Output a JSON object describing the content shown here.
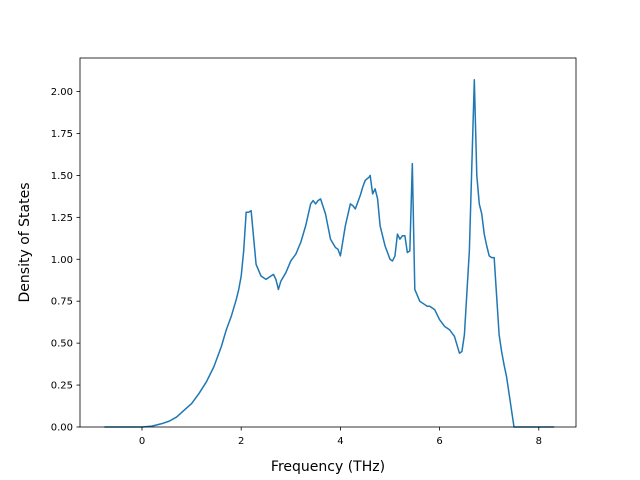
{
  "chart_data": {
    "type": "line",
    "title": "",
    "xlabel": "Frequency (THz)",
    "ylabel": "Density of States",
    "xlim": [
      -1.25,
      8.75
    ],
    "ylim": [
      0.0,
      2.2
    ],
    "grid": false,
    "xticks": [
      0,
      2,
      4,
      6,
      8
    ],
    "xtick_labels": [
      "0",
      "2",
      "4",
      "6",
      "8"
    ],
    "yticks": [
      0.0,
      0.25,
      0.5,
      0.75,
      1.0,
      1.25,
      1.5,
      1.75,
      2.0
    ],
    "ytick_labels": [
      "0.00",
      "0.25",
      "0.50",
      "0.75",
      "1.00",
      "1.25",
      "1.50",
      "1.75",
      "2.00"
    ],
    "line_color": "#1f77b4",
    "series": [
      {
        "x": [
          -0.75,
          -0.5,
          -0.25,
          0.0,
          0.2,
          0.4,
          0.55,
          0.7,
          0.85,
          1.0,
          1.15,
          1.3,
          1.45,
          1.6,
          1.7,
          1.8,
          1.9,
          1.95,
          2.0,
          2.05,
          2.1,
          2.12,
          2.15,
          2.2,
          2.3,
          2.4,
          2.5,
          2.6,
          2.65,
          2.7,
          2.75,
          2.8,
          2.9,
          3.0,
          3.1,
          3.2,
          3.3,
          3.4,
          3.45,
          3.5,
          3.55,
          3.6,
          3.7,
          3.8,
          3.9,
          3.95,
          4.0,
          4.1,
          4.2,
          4.25,
          4.3,
          4.4,
          4.45,
          4.5,
          4.58,
          4.6,
          4.65,
          4.7,
          4.75,
          4.8,
          4.9,
          5.0,
          5.05,
          5.1,
          5.15,
          5.2,
          5.25,
          5.3,
          5.35,
          5.4,
          5.45,
          5.5,
          5.6,
          5.7,
          5.75,
          5.8,
          5.9,
          6.0,
          6.1,
          6.2,
          6.3,
          6.4,
          6.45,
          6.5,
          6.55,
          6.6,
          6.7,
          6.75,
          6.8,
          6.85,
          6.9,
          6.95,
          7.0,
          7.05,
          7.1,
          7.2,
          7.25,
          7.3,
          7.35,
          7.4,
          7.5,
          7.55,
          7.6,
          7.8,
          8.0,
          8.3
        ],
        "y": [
          0.0,
          0.0,
          0.0,
          0.0,
          0.005,
          0.02,
          0.035,
          0.06,
          0.1,
          0.14,
          0.2,
          0.27,
          0.36,
          0.48,
          0.58,
          0.66,
          0.76,
          0.82,
          0.9,
          1.05,
          1.28,
          1.28,
          1.28,
          1.29,
          0.97,
          0.9,
          0.88,
          0.9,
          0.91,
          0.88,
          0.82,
          0.87,
          0.92,
          0.99,
          1.03,
          1.1,
          1.2,
          1.33,
          1.35,
          1.33,
          1.35,
          1.36,
          1.27,
          1.12,
          1.07,
          1.06,
          1.02,
          1.2,
          1.33,
          1.32,
          1.3,
          1.38,
          1.43,
          1.47,
          1.49,
          1.5,
          1.39,
          1.42,
          1.36,
          1.2,
          1.08,
          1.0,
          0.99,
          1.02,
          1.15,
          1.12,
          1.14,
          1.14,
          1.04,
          1.05,
          1.57,
          0.82,
          0.75,
          0.73,
          0.72,
          0.72,
          0.7,
          0.64,
          0.6,
          0.58,
          0.54,
          0.44,
          0.45,
          0.55,
          0.8,
          1.05,
          2.07,
          1.5,
          1.33,
          1.27,
          1.15,
          1.08,
          1.02,
          1.01,
          1.01,
          0.55,
          0.45,
          0.37,
          0.3,
          0.2,
          0.0,
          0.0,
          0.0,
          0.0,
          0.0,
          0.0
        ]
      }
    ]
  }
}
